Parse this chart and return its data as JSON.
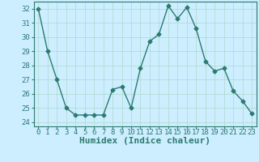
{
  "x": [
    0,
    1,
    2,
    3,
    4,
    5,
    6,
    7,
    8,
    9,
    10,
    11,
    12,
    13,
    14,
    15,
    16,
    17,
    18,
    19,
    20,
    21,
    22,
    23
  ],
  "y": [
    32,
    29,
    27,
    25,
    24.5,
    24.5,
    24.5,
    24.5,
    26.3,
    26.5,
    25,
    27.8,
    29.7,
    30.2,
    32.2,
    31.3,
    32.1,
    30.6,
    28.3,
    27.6,
    27.8,
    26.2,
    25.5,
    24.6
  ],
  "line_color": "#2d7a6e",
  "bg_color": "#cceeff",
  "grid_color": "#b0d8cc",
  "xlabel": "Humidex (Indice chaleur)",
  "ylim": [
    23.7,
    32.5
  ],
  "xlim": [
    -0.5,
    23.5
  ],
  "yticks": [
    24,
    25,
    26,
    27,
    28,
    29,
    30,
    31,
    32
  ],
  "xticks": [
    0,
    1,
    2,
    3,
    4,
    5,
    6,
    7,
    8,
    9,
    10,
    11,
    12,
    13,
    14,
    15,
    16,
    17,
    18,
    19,
    20,
    21,
    22,
    23
  ],
  "marker": "D",
  "marker_size": 2.5,
  "line_width": 1.0,
  "xlabel_fontsize": 8,
  "tick_fontsize": 6.5
}
